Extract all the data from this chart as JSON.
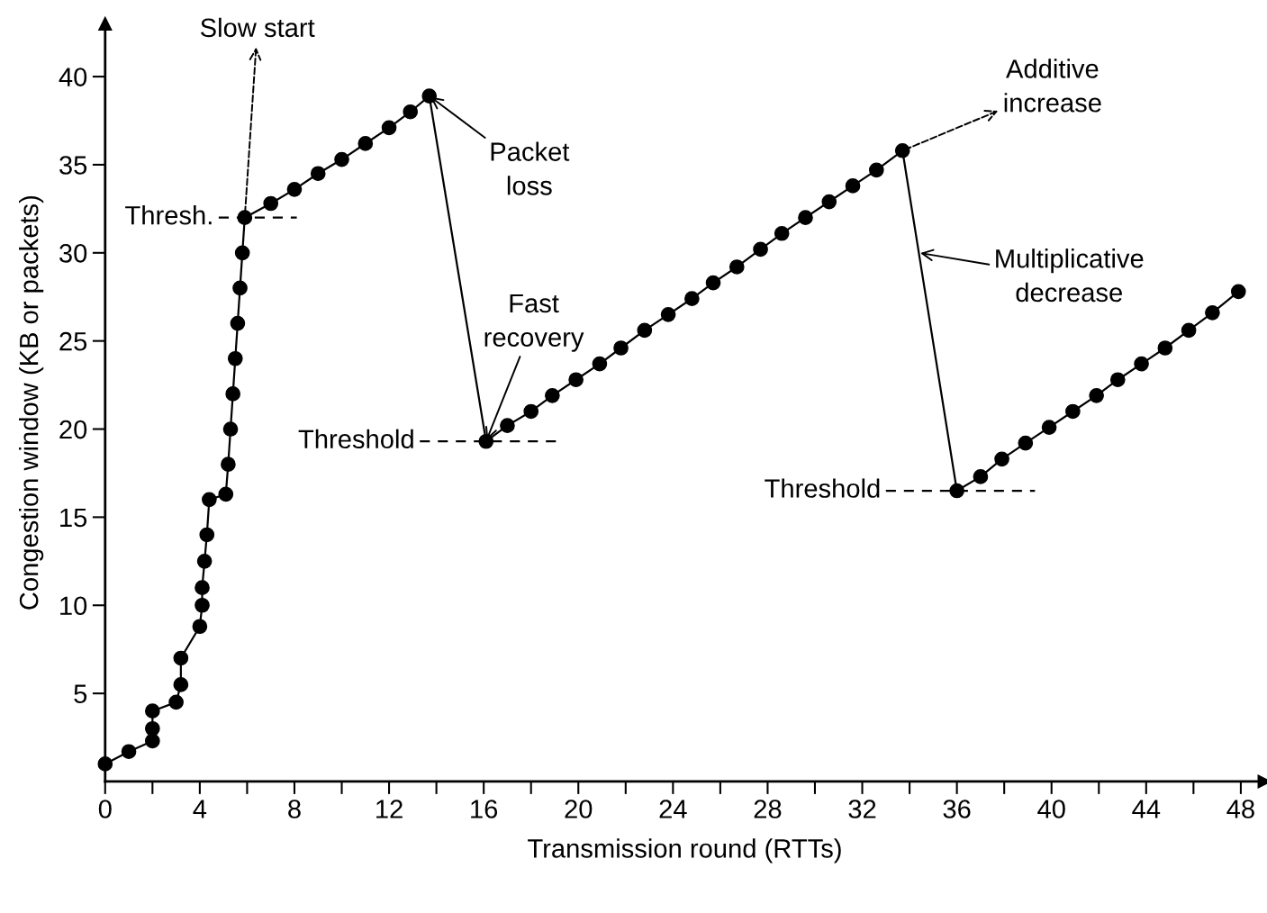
{
  "chart_data": {
    "type": "line",
    "xlabel": "Transmission round (RTTs)",
    "ylabel": "Congestion window (KB or packets)",
    "xlim": [
      0,
      49
    ],
    "ylim": [
      0,
      43
    ],
    "xticks": [
      0,
      {
        "value": 2,
        "label": null
      },
      4,
      {
        "value": 6,
        "label": null
      },
      8,
      {
        "value": 10,
        "label": null
      },
      12,
      {
        "value": 14,
        "label": null
      },
      16,
      {
        "value": 18,
        "label": null
      },
      20,
      {
        "value": 22,
        "label": null
      },
      24,
      {
        "value": 26,
        "label": null
      },
      28,
      {
        "value": 30,
        "label": null
      },
      32,
      {
        "value": 34,
        "label": null
      },
      36,
      {
        "value": 38,
        "label": null
      },
      40,
      {
        "value": 42,
        "label": null
      },
      44,
      {
        "value": 46,
        "label": null
      },
      48
    ],
    "yticks": [
      5,
      10,
      15,
      20,
      25,
      30,
      35,
      40
    ],
    "grid": false,
    "legend": false,
    "marker": "circle",
    "line_style": "solid",
    "series": [
      {
        "color": "#000000",
        "x": [
          0,
          1,
          2,
          2,
          2,
          3,
          3.2,
          3.2,
          4,
          4.1,
          4.1,
          4.2,
          4.3,
          4.4,
          5.1,
          5.2,
          5.3,
          5.4,
          5.5,
          5.6,
          5.7,
          5.8,
          5.9,
          7,
          8,
          9,
          10,
          11,
          12,
          12.9,
          13.7,
          16.1,
          17.0,
          18.0,
          18.9,
          19.9,
          20.9,
          21.8,
          22.8,
          23.8,
          24.8,
          25.7,
          26.7,
          27.7,
          28.6,
          29.6,
          30.6,
          31.6,
          32.6,
          33.7,
          36,
          37.0,
          37.9,
          38.9,
          39.9,
          40.9,
          41.9,
          42.8,
          43.8,
          44.8,
          45.8,
          46.8,
          47.9
        ],
        "values": [
          1,
          1.7,
          2.3,
          3,
          4,
          4.5,
          5.5,
          7,
          8.8,
          10,
          11,
          12.5,
          14,
          16,
          16.3,
          18,
          20,
          22,
          24,
          26,
          28,
          30,
          32,
          32.8,
          33.6,
          34.5,
          35.3,
          36.2,
          37.1,
          38,
          38.9,
          19.3,
          20.2,
          21.0,
          21.9,
          22.8,
          23.7,
          24.6,
          25.6,
          26.5,
          27.4,
          28.3,
          29.2,
          30.2,
          31.1,
          32.0,
          32.9,
          33.8,
          34.7,
          35.8,
          16.5,
          17.3,
          18.3,
          19.2,
          20.1,
          21.0,
          21.9,
          22.8,
          23.7,
          24.6,
          25.6,
          26.6,
          27.8
        ]
      }
    ],
    "annotations": [
      {
        "text": "Slow start",
        "x": 5.9,
        "y": 32
      },
      {
        "text": "Additive\nincrease",
        "x": 33.7,
        "y": 35.8
      },
      {
        "text": "Packet\nloss",
        "x": 13.7,
        "y": 38.9
      },
      {
        "text": "Fast\nrecovery",
        "x": 16.1,
        "y": 19.3
      },
      {
        "text": "Multiplicative\ndecrease",
        "x": 34.4,
        "y": 30
      },
      {
        "text": "Thresh.",
        "x": 5.9,
        "y": 32
      },
      {
        "text": "Threshold",
        "x": 16.1,
        "y": 19.3
      },
      {
        "text": "Threshold",
        "x": 36,
        "y": 16.5
      }
    ]
  }
}
